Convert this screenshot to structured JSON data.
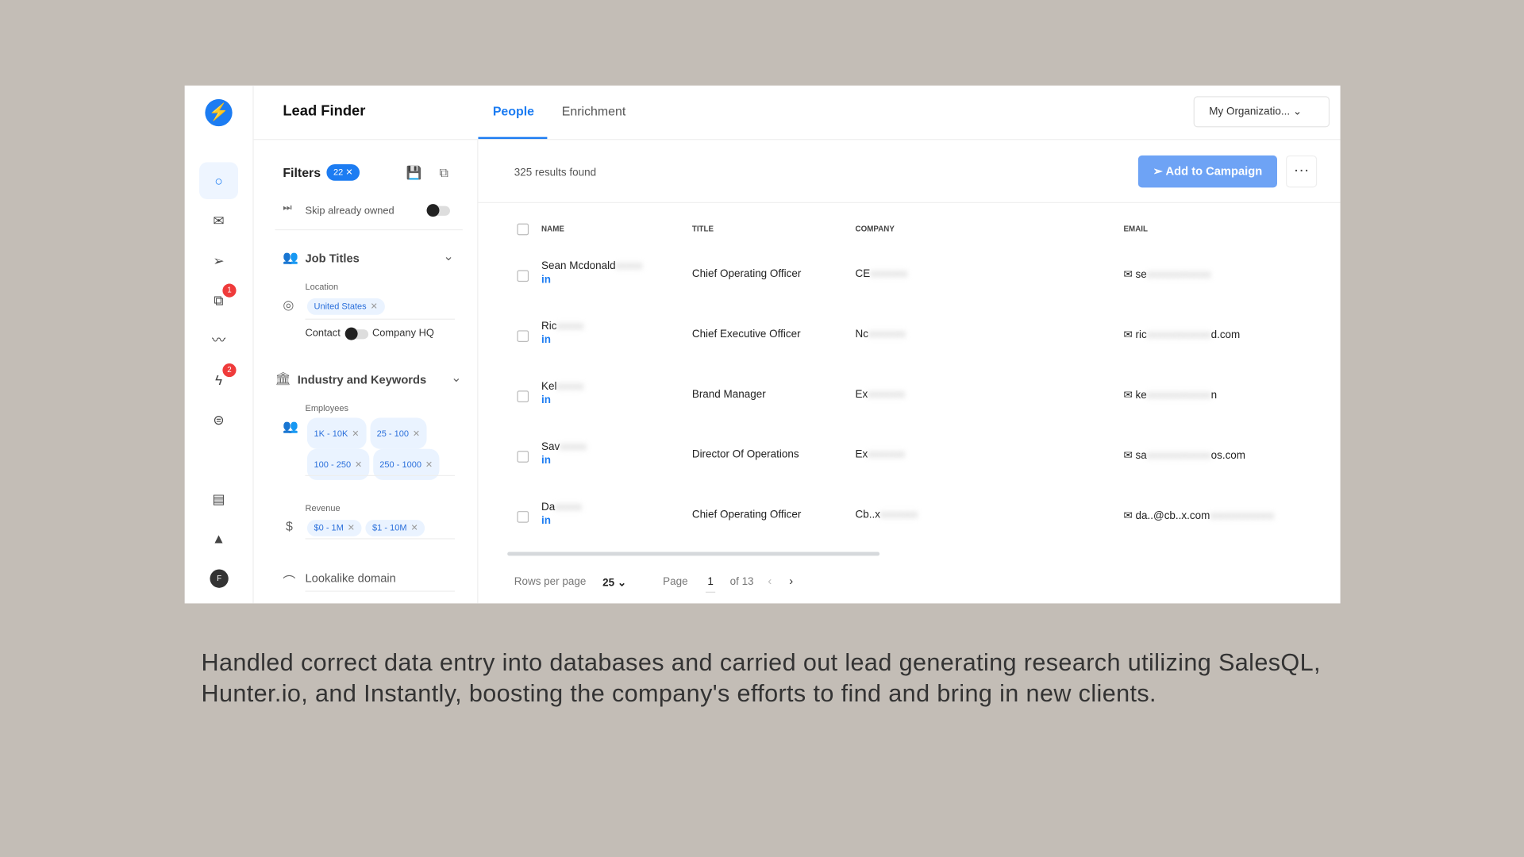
{
  "app": {
    "title": "Lead Finder",
    "tabs": [
      {
        "label": "People",
        "active": true
      },
      {
        "label": "Enrichment",
        "active": false
      }
    ],
    "org_selector": "My Organizatio..."
  },
  "nav": {
    "items": [
      "search",
      "mail",
      "send",
      "copy",
      "trend",
      "bolt",
      "ufo",
      "chat",
      "rocket"
    ],
    "badges": {
      "copy": "1",
      "bolt": "2"
    },
    "avatar": "F"
  },
  "filters": {
    "title": "Filters",
    "count": "22",
    "skip_owned": "Skip already owned",
    "skip_owned_on": false,
    "job_titles": "Job Titles",
    "location_label": "Location",
    "location_chips": [
      "United States"
    ],
    "contact": "Contact",
    "company_hq": "Company HQ",
    "industry": "Industry and Keywords",
    "employees_label": "Employees",
    "employees_chips": [
      "1K - 10K",
      "25 - 100",
      "100 - 250",
      "250 - 1000"
    ],
    "revenue_label": "Revenue",
    "revenue_chips": [
      "$0 - 1M",
      "$1 - 10M"
    ],
    "lookalike": "Lookalike domain"
  },
  "results": {
    "count_text": "325 results found",
    "add_button": "Add to Campaign",
    "columns": [
      "NAME",
      "TITLE",
      "COMPANY",
      "EMAIL"
    ],
    "rows": [
      {
        "name": "Sean Mcdonald",
        "title": "Chief Operating Officer",
        "company": "CE",
        "email": "se"
      },
      {
        "name": "Ric",
        "title": "Chief Executive Officer",
        "company": "Nc",
        "email": "ric",
        "email_end": "d.com"
      },
      {
        "name": "Kel",
        "title": "Brand Manager",
        "company": "Ex",
        "email": "ke",
        "email_end": "n"
      },
      {
        "name": "Sav",
        "title": "Director Of Operations",
        "company": "Ex",
        "email": "sa",
        "email_end": "os.com"
      },
      {
        "name": "Da",
        "title": "Chief Operating Officer",
        "company": "Cb..x",
        "email": "da..@cb..x.com"
      }
    ],
    "linkedin": "in",
    "pagination": {
      "rows_label": "Rows per page",
      "rows_value": "25",
      "page_label": "Page",
      "page": "1",
      "of": "of 13"
    }
  },
  "chat_badge": "1",
  "caption": "Handled correct data entry into databases and carried out lead generating research utilizing SalesQL, Hunter.io, and Instantly, boosting the company's efforts to find and bring in new clients.",
  "colors": {
    "accent": "#1c7cf2",
    "background": "#c3bdb6",
    "badge": "#ef3b3b"
  }
}
